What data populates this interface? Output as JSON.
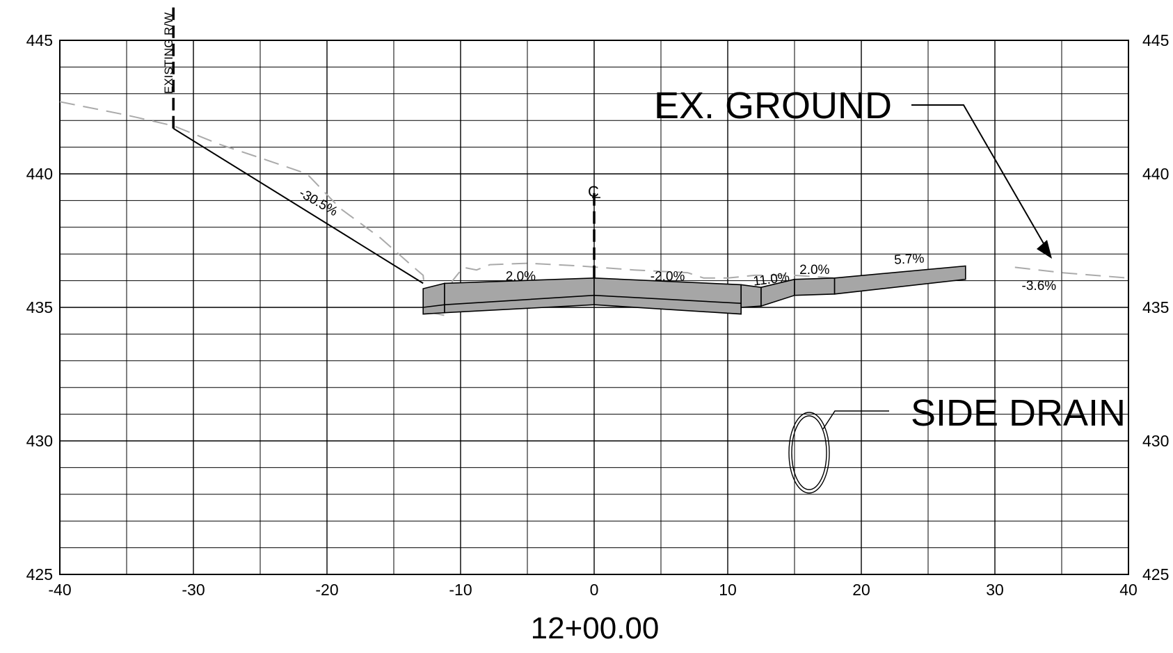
{
  "drawing": {
    "station_label": "12+00.00",
    "offset_axis": {
      "min": -40,
      "max": 40,
      "major_step": 10,
      "minor_step": 5
    },
    "elevation_axis": {
      "min": 425,
      "max": 445,
      "major_step": 5,
      "minor_step": 1
    },
    "x_tick_labels": [
      "-40",
      "-30",
      "-20",
      "-10",
      "0",
      "10",
      "20",
      "30",
      "40"
    ],
    "y_tick_labels": [
      "425",
      "430",
      "435",
      "440",
      "445"
    ],
    "callouts": {
      "ex_ground": "EX. GROUND",
      "side_drain": "SIDE DRAIN",
      "existing_rw": "EXISTING R/W",
      "centerline": "C"
    },
    "slope_labels": [
      {
        "text": "-30.5%",
        "x": -20.8,
        "y": 438.8,
        "rot": 30
      },
      {
        "text": "2.0%",
        "x": -5.5,
        "y": 436.0,
        "rot": 0
      },
      {
        "text": "-2.0%",
        "x": 5.5,
        "y": 436.0,
        "rot": 0
      },
      {
        "text": "11.0%",
        "x": 13.3,
        "y": 435.9,
        "rot": -7
      },
      {
        "text": "2.0%",
        "x": 16.5,
        "y": 436.25,
        "rot": 0
      },
      {
        "text": "5.7%",
        "x": 23.6,
        "y": 436.65,
        "rot": -3
      },
      {
        "text": "-3.6%",
        "x": 33.3,
        "y": 435.65,
        "rot": 0
      }
    ],
    "colors": {
      "line": "#000000",
      "fill": "#a6a6a6",
      "ground": "#aaaaaa"
    }
  },
  "chart_data": {
    "type": "line",
    "xlabel": "",
    "ylabel": "",
    "xlim": [
      -40,
      40
    ],
    "ylim": [
      425,
      445
    ],
    "grid": true,
    "series": [
      {
        "name": "EX. GROUND",
        "style": "dashed",
        "points": [
          [
            -40,
            442.7
          ],
          [
            -35,
            442.2
          ],
          [
            -31.5,
            441.8
          ],
          [
            -28,
            441.1
          ],
          [
            -25,
            440.6
          ],
          [
            -21.5,
            440.0
          ],
          [
            -19,
            438.7
          ],
          [
            -16,
            437.6
          ],
          [
            -13.5,
            436.5
          ],
          [
            -12.8,
            436.2
          ],
          [
            -12.6,
            435.2
          ],
          [
            -12.2,
            434.8
          ],
          [
            -11.2,
            434.7
          ],
          [
            -10.6,
            436.0
          ],
          [
            -9.8,
            436.5
          ],
          [
            -8.8,
            436.4
          ],
          [
            -7.8,
            436.6
          ],
          [
            -5,
            436.65
          ],
          [
            -1,
            436.55
          ],
          [
            3,
            436.4
          ],
          [
            5,
            436.35
          ],
          [
            7,
            436.3
          ],
          [
            8.2,
            436.1
          ],
          [
            10,
            436.1
          ],
          [
            12,
            436.2
          ],
          [
            15,
            436.2
          ],
          [
            18,
            436.1
          ],
          [
            20,
            436.1
          ],
          [
            22,
            436.05
          ]
        ]
      },
      {
        "name": "EX. GROUND",
        "style": "dashed",
        "points": [
          [
            31.5,
            436.5
          ],
          [
            35,
            436.3
          ],
          [
            40,
            436.1
          ]
        ]
      },
      {
        "name": "-30.5%",
        "style": "solid",
        "points": [
          [
            -31.5,
            441.7
          ],
          [
            -12.8,
            435.9
          ]
        ]
      }
    ],
    "pavement_sections": [
      {
        "x": [
          -12.8,
          -11.2
        ],
        "top": [
          435.7,
          435.9
        ],
        "bottom": [
          434.75,
          434.8
        ]
      },
      {
        "x": [
          -11.2,
          0
        ],
        "top": [
          435.9,
          436.1
        ],
        "bottom": [
          434.8,
          435.1
        ]
      },
      {
        "x": [
          0,
          11
        ],
        "top": [
          436.1,
          435.85
        ],
        "bottom": [
          435.1,
          434.75
        ]
      },
      {
        "x": [
          11,
          12.5
        ],
        "top": [
          435.85,
          435.75
        ],
        "bottom": [
          435.0,
          435.05
        ]
      },
      {
        "x": [
          12.5,
          15
        ],
        "top": [
          435.75,
          436.05
        ],
        "bottom": [
          435.05,
          435.45
        ]
      },
      {
        "x": [
          15,
          18
        ],
        "top": [
          436.05,
          436.1
        ],
        "bottom": [
          435.45,
          435.5
        ]
      },
      {
        "x": [
          18,
          27.8
        ],
        "top": [
          436.1,
          436.55
        ],
        "bottom": [
          435.5,
          436.05
        ]
      }
    ],
    "markers": [
      {
        "label": "EXISTING R/W",
        "x": -31.5,
        "y_from": 441.7,
        "y_to": 446.4
      },
      {
        "label": "C",
        "x": 0,
        "y_from": 436.1,
        "y_to": 439.5
      }
    ],
    "side_drain": {
      "x": 16.2,
      "y": 429.5
    }
  }
}
